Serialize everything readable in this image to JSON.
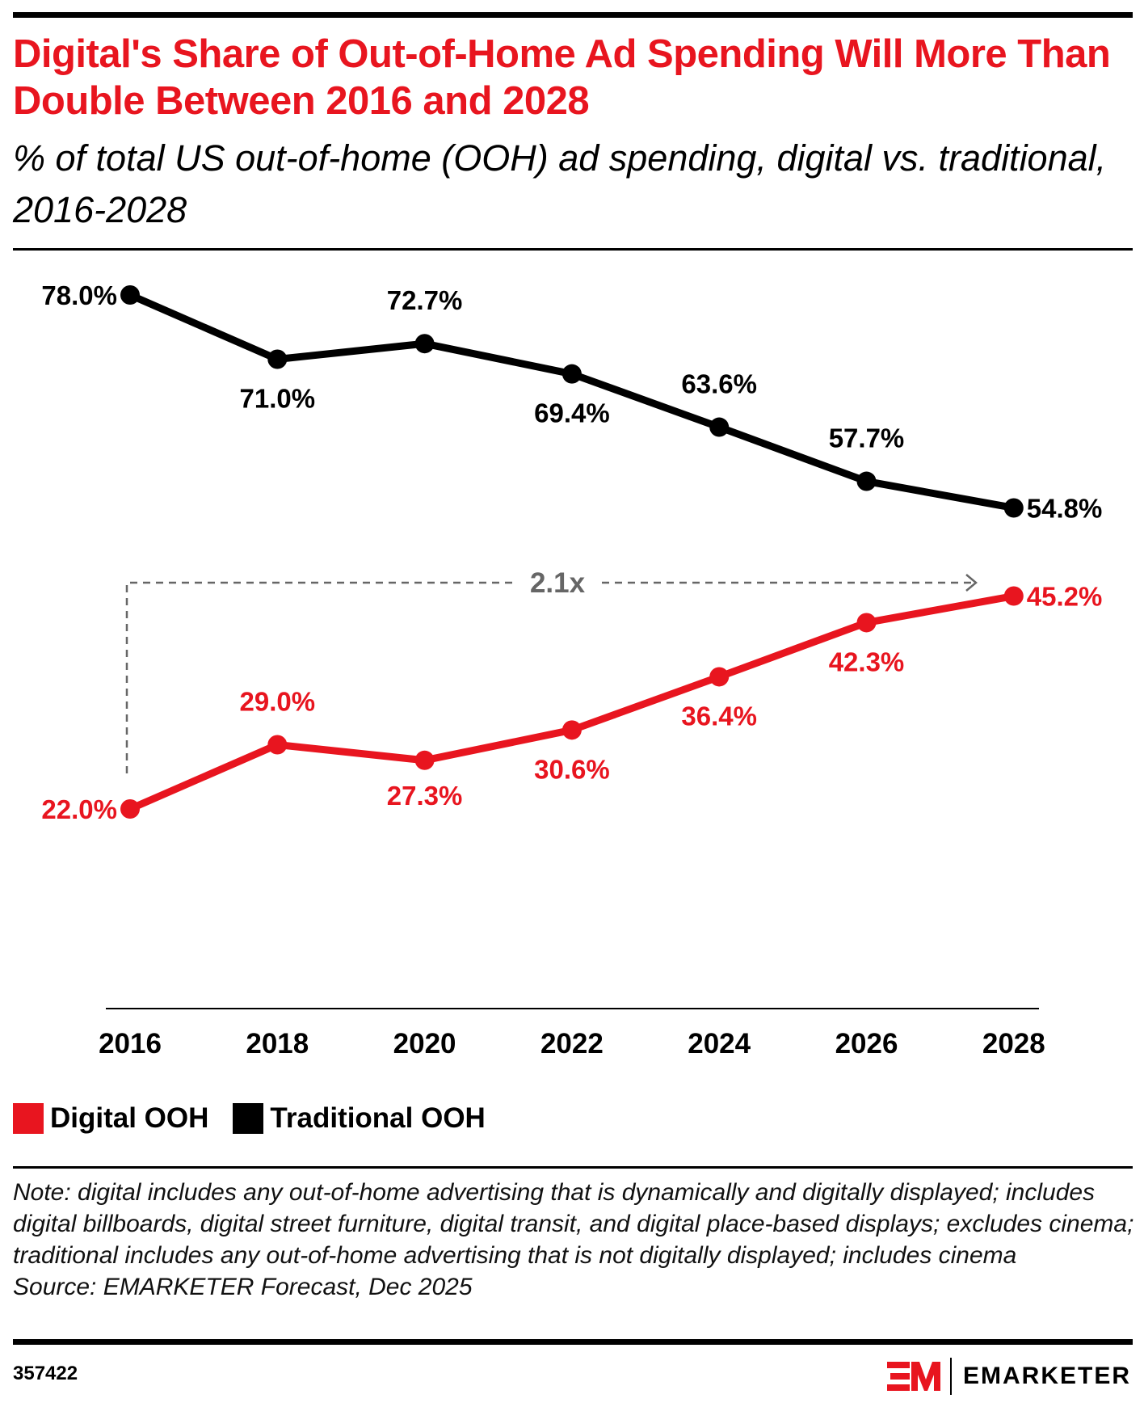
{
  "header": {
    "title": "Digital's Share of Out-of-Home Ad Spending Will More Than Double Between 2016 and 2028",
    "subtitle": "% of total US out-of-home (OOH) ad spending, digital vs. traditional, 2016-2028"
  },
  "chart_data": {
    "type": "line",
    "categories": [
      "2016",
      "2018",
      "2020",
      "2022",
      "2024",
      "2026",
      "2028"
    ],
    "series": [
      {
        "name": "Digital OOH",
        "color": "#e8151f",
        "values": [
          22.0,
          29.0,
          27.3,
          30.6,
          36.4,
          42.3,
          45.2
        ],
        "labels": [
          "22.0%",
          "29.0%",
          "27.3%",
          "30.6%",
          "36.4%",
          "42.3%",
          "45.2%"
        ]
      },
      {
        "name": "Traditional OOH",
        "color": "#000000",
        "values": [
          78.0,
          71.0,
          72.7,
          69.4,
          63.6,
          57.7,
          54.8
        ],
        "labels": [
          "78.0%",
          "71.0%",
          "72.7%",
          "69.4%",
          "63.6%",
          "57.7%",
          "54.8%"
        ]
      }
    ],
    "annotation": "2.1x",
    "annotation_color": "#666666",
    "grid": false,
    "legend": "bottom-left"
  },
  "footer": {
    "note": "Note: digital includes any out-of-home advertising that is dynamically and digitally displayed; includes digital billboards, digital street furniture, digital transit, and digital place-based displays; excludes cinema; traditional includes any out-of-home advertising that is not digitally displayed; includes cinema",
    "source": "Source: EMARKETER Forecast, Dec 2025",
    "id": "357422",
    "brand": "EMARKETER"
  }
}
